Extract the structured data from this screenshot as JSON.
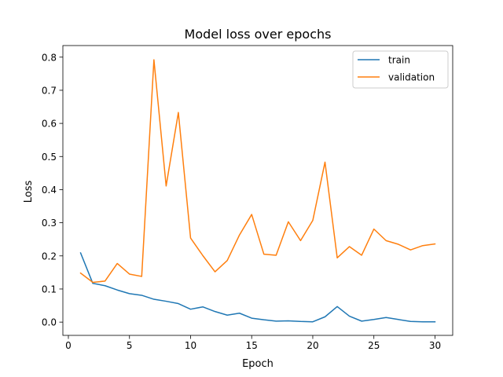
{
  "chart_data": {
    "type": "line",
    "title": "Model loss over epochs",
    "xlabel": "Epoch",
    "ylabel": "Loss",
    "xlim": [
      -0.45,
      31.45
    ],
    "ylim": [
      -0.04,
      0.835
    ],
    "xticks": [
      0,
      5,
      10,
      15,
      20,
      25,
      30
    ],
    "xtick_labels": [
      "0",
      "5",
      "10",
      "15",
      "20",
      "25",
      "30"
    ],
    "yticks": [
      0.0,
      0.1,
      0.2,
      0.3,
      0.4,
      0.5,
      0.6,
      0.7,
      0.8
    ],
    "ytick_labels": [
      "0.0",
      "0.1",
      "0.2",
      "0.3",
      "0.4",
      "0.5",
      "0.6",
      "0.7",
      "0.8"
    ],
    "grid": false,
    "legend_position": "top-right",
    "x": [
      1,
      2,
      3,
      4,
      5,
      6,
      7,
      8,
      9,
      10,
      11,
      12,
      13,
      14,
      15,
      16,
      17,
      18,
      19,
      20,
      21,
      22,
      23,
      24,
      25,
      26,
      27,
      28,
      29,
      30
    ],
    "series": [
      {
        "name": "train",
        "color": "#1f77b4",
        "values": [
          0.209,
          0.117,
          0.11,
          0.097,
          0.086,
          0.081,
          0.069,
          0.063,
          0.056,
          0.039,
          0.046,
          0.032,
          0.021,
          0.027,
          0.012,
          0.007,
          0.003,
          0.004,
          0.002,
          0.001,
          0.016,
          0.047,
          0.018,
          0.003,
          0.008,
          0.014,
          0.008,
          0.002,
          0.001,
          0.001
        ]
      },
      {
        "name": "validation",
        "color": "#ff7f0e",
        "values": [
          0.148,
          0.12,
          0.124,
          0.177,
          0.145,
          0.138,
          0.792,
          0.411,
          0.633,
          0.254,
          0.201,
          0.152,
          0.186,
          0.263,
          0.325,
          0.205,
          0.202,
          0.303,
          0.246,
          0.307,
          0.483,
          0.194,
          0.228,
          0.202,
          0.281,
          0.246,
          0.235,
          0.218,
          0.231,
          0.236
        ]
      }
    ]
  }
}
